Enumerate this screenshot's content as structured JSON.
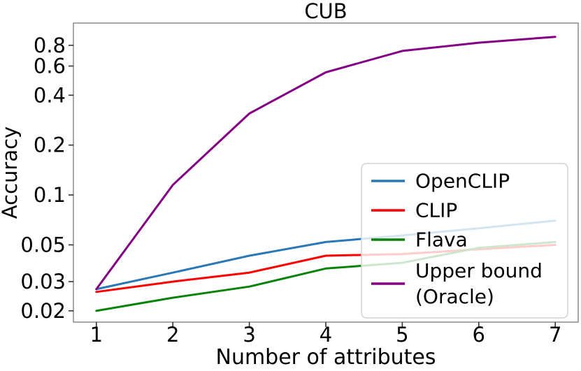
{
  "figure": {
    "background": "#ffffff",
    "axis_color": "#6e6e6e",
    "tick_color": "#333333",
    "text_color": "#000000",
    "legend_background": "#ffffff",
    "legend_border": "#d2d2d2"
  },
  "chart_data": {
    "type": "line",
    "title": "CUB",
    "xlabel": "Number of attributes",
    "ylabel": "Accuracy",
    "grid": false,
    "yscale": "log",
    "xlim": [
      0.7,
      7.3
    ],
    "ylim": [
      0.0171,
      1.09
    ],
    "x": [
      1,
      2,
      3,
      4,
      5,
      6,
      7
    ],
    "xtick_labels": [
      "1",
      "2",
      "3",
      "4",
      "5",
      "6",
      "7"
    ],
    "yticks": [
      0.8,
      0.6,
      0.4,
      0.2,
      0.1,
      0.05,
      0.03,
      0.02
    ],
    "ytick_labels": [
      "0.8",
      "0.6",
      "0.4",
      "0.2",
      "0.1",
      "0.05",
      "0.03",
      "0.02"
    ],
    "legend_position": "lower-right-inside",
    "series": [
      {
        "name": "OpenCLIP",
        "label_lines": [
          "OpenCLIP"
        ],
        "color": "#2878b5",
        "values": [
          0.027,
          0.034,
          0.043,
          0.052,
          0.057,
          0.063,
          0.07
        ]
      },
      {
        "name": "CLIP",
        "label_lines": [
          "CLIP"
        ],
        "color": "#ff0000",
        "values": [
          0.026,
          0.03,
          0.034,
          0.043,
          0.044,
          0.047,
          0.05
        ]
      },
      {
        "name": "Flava",
        "label_lines": [
          "Flava"
        ],
        "color": "#0a830a",
        "values": [
          0.02,
          0.024,
          0.028,
          0.036,
          0.039,
          0.048,
          0.052
        ]
      },
      {
        "name": "Upper bound (Oracle)",
        "label_lines": [
          "Upper bound",
          "(Oracle)"
        ],
        "color": "#840084",
        "values": [
          0.027,
          0.115,
          0.31,
          0.55,
          0.74,
          0.83,
          0.9
        ]
      }
    ]
  }
}
